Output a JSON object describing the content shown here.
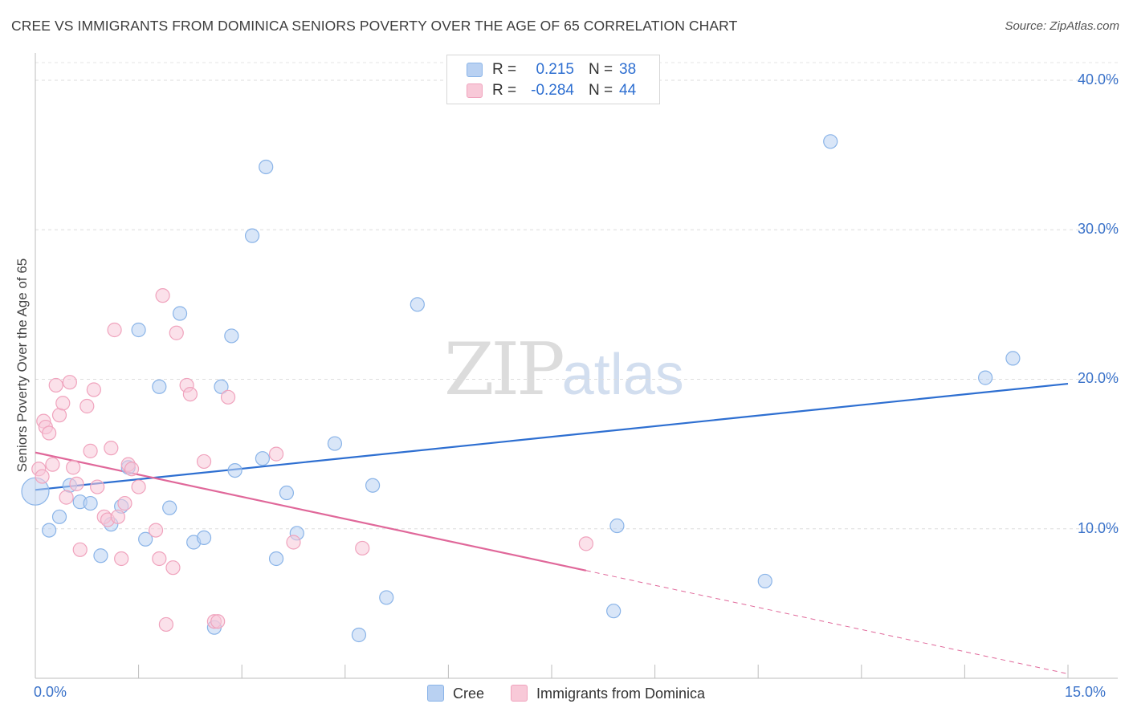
{
  "title": "CREE VS IMMIGRANTS FROM DOMINICA SENIORS POVERTY OVER THE AGE OF 65 CORRELATION CHART",
  "source": "Source: ZipAtlas.com",
  "watermark": {
    "zip": "ZIP",
    "atlas": "atlas"
  },
  "stats_box": [
    {
      "series": "Cree",
      "r_label": "R =",
      "r_value": "0.215",
      "n_label": "N =",
      "n_value": "38"
    },
    {
      "series": "Immigrants from Dominica",
      "r_label": "R =",
      "r_value": "-0.284",
      "n_label": "N =",
      "n_value": "44"
    }
  ],
  "chart_data": {
    "type": "scatter",
    "title": "CREE VS IMMIGRANTS FROM DOMINICA SENIORS POVERTY OVER THE AGE OF 65 CORRELATION CHART",
    "xlabel": "",
    "ylabel": "Seniors Poverty Over the Age of 65",
    "xlim": [
      0,
      15
    ],
    "ylim": [
      0,
      41.5
    ],
    "x_tick_labels": [
      "0.0%",
      "15.0%"
    ],
    "y_ticks": [
      10,
      20,
      30,
      40
    ],
    "y_tick_labels": [
      "10.0%",
      "20.0%",
      "30.0%",
      "40.0%"
    ],
    "grid": true,
    "legend_position": "bottom-center",
    "series": [
      {
        "name": "Cree",
        "color": "#8ab4e8",
        "fill": "#b9d1f2",
        "line_color": "#2e6fd1",
        "trend": {
          "x": [
            0,
            15
          ],
          "y": [
            12.6,
            19.7
          ],
          "dashed_from": null
        },
        "points": [
          {
            "x": 0.0,
            "y": 12.5,
            "big": true
          },
          {
            "x": 0.2,
            "y": 9.9
          },
          {
            "x": 0.35,
            "y": 10.8
          },
          {
            "x": 0.5,
            "y": 12.9
          },
          {
            "x": 0.65,
            "y": 11.8
          },
          {
            "x": 0.8,
            "y": 11.7
          },
          {
            "x": 0.95,
            "y": 8.2
          },
          {
            "x": 1.1,
            "y": 10.3
          },
          {
            "x": 1.25,
            "y": 11.5
          },
          {
            "x": 1.35,
            "y": 14.1
          },
          {
            "x": 1.5,
            "y": 23.3
          },
          {
            "x": 1.6,
            "y": 9.3
          },
          {
            "x": 1.8,
            "y": 19.5
          },
          {
            "x": 1.95,
            "y": 11.4
          },
          {
            "x": 2.1,
            "y": 24.4
          },
          {
            "x": 2.3,
            "y": 9.1
          },
          {
            "x": 2.45,
            "y": 9.4
          },
          {
            "x": 2.6,
            "y": 3.4
          },
          {
            "x": 2.7,
            "y": 19.5
          },
          {
            "x": 2.85,
            "y": 22.9
          },
          {
            "x": 2.9,
            "y": 13.9
          },
          {
            "x": 3.15,
            "y": 29.6
          },
          {
            "x": 3.3,
            "y": 14.7
          },
          {
            "x": 3.35,
            "y": 34.2
          },
          {
            "x": 3.5,
            "y": 8.0
          },
          {
            "x": 3.65,
            "y": 12.4
          },
          {
            "x": 3.8,
            "y": 9.7
          },
          {
            "x": 4.35,
            "y": 15.7
          },
          {
            "x": 4.7,
            "y": 2.9
          },
          {
            "x": 4.9,
            "y": 12.9
          },
          {
            "x": 5.1,
            "y": 5.4
          },
          {
            "x": 5.55,
            "y": 25.0
          },
          {
            "x": 8.4,
            "y": 4.5
          },
          {
            "x": 8.45,
            "y": 10.2
          },
          {
            "x": 10.6,
            "y": 6.5
          },
          {
            "x": 11.55,
            "y": 35.9
          },
          {
            "x": 13.8,
            "y": 20.1
          },
          {
            "x": 14.2,
            "y": 21.4
          }
        ]
      },
      {
        "name": "Immigrants from Dominica",
        "color": "#f0a3bd",
        "fill": "#f8c9d8",
        "line_color": "#e0689a",
        "trend": {
          "x": [
            0,
            15
          ],
          "y": [
            15.1,
            0.3
          ],
          "dashed_from": 8.0
        },
        "points": [
          {
            "x": 0.05,
            "y": 14.0
          },
          {
            "x": 0.1,
            "y": 13.5
          },
          {
            "x": 0.12,
            "y": 17.2
          },
          {
            "x": 0.15,
            "y": 16.8
          },
          {
            "x": 0.2,
            "y": 16.4
          },
          {
            "x": 0.25,
            "y": 14.3
          },
          {
            "x": 0.3,
            "y": 19.6
          },
          {
            "x": 0.35,
            "y": 17.6
          },
          {
            "x": 0.4,
            "y": 18.4
          },
          {
            "x": 0.45,
            "y": 12.1
          },
          {
            "x": 0.5,
            "y": 19.8
          },
          {
            "x": 0.55,
            "y": 14.1
          },
          {
            "x": 0.6,
            "y": 13.0
          },
          {
            "x": 0.65,
            "y": 8.6
          },
          {
            "x": 0.75,
            "y": 18.2
          },
          {
            "x": 0.8,
            "y": 15.2
          },
          {
            "x": 0.85,
            "y": 19.3
          },
          {
            "x": 0.9,
            "y": 12.8
          },
          {
            "x": 1.0,
            "y": 10.8
          },
          {
            "x": 1.05,
            "y": 10.6
          },
          {
            "x": 1.1,
            "y": 15.4
          },
          {
            "x": 1.15,
            "y": 23.3
          },
          {
            "x": 1.2,
            "y": 10.8
          },
          {
            "x": 1.25,
            "y": 8.0
          },
          {
            "x": 1.3,
            "y": 11.7
          },
          {
            "x": 1.35,
            "y": 14.3
          },
          {
            "x": 1.4,
            "y": 14.0
          },
          {
            "x": 1.5,
            "y": 12.8
          },
          {
            "x": 1.75,
            "y": 9.9
          },
          {
            "x": 1.8,
            "y": 8.0
          },
          {
            "x": 1.85,
            "y": 25.6
          },
          {
            "x": 1.9,
            "y": 3.6
          },
          {
            "x": 2.0,
            "y": 7.4
          },
          {
            "x": 2.05,
            "y": 23.1
          },
          {
            "x": 2.2,
            "y": 19.6
          },
          {
            "x": 2.25,
            "y": 19.0
          },
          {
            "x": 2.45,
            "y": 14.5
          },
          {
            "x": 2.6,
            "y": 3.8
          },
          {
            "x": 2.65,
            "y": 3.8
          },
          {
            "x": 2.8,
            "y": 18.8
          },
          {
            "x": 3.5,
            "y": 15.0
          },
          {
            "x": 3.75,
            "y": 9.1
          },
          {
            "x": 4.75,
            "y": 8.7
          },
          {
            "x": 8.0,
            "y": 9.0
          }
        ]
      }
    ]
  }
}
